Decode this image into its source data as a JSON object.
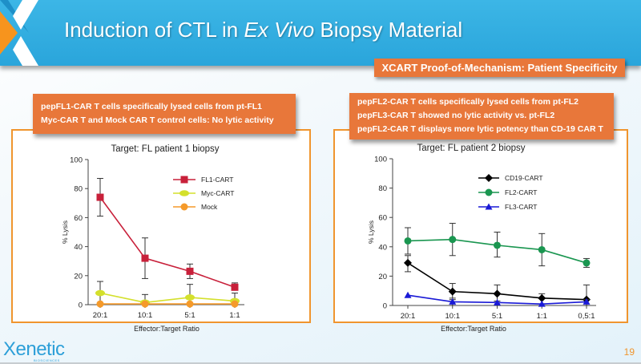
{
  "header": {
    "title_pre": "Induction of CTL in ",
    "title_italic": "Ex Vivo",
    "title_post": " Biopsy Material",
    "subtitle": "XCART Proof-of-Mechanism: Patient Specificity"
  },
  "callouts": {
    "left": [
      "pepFL1-CAR T cells specifically lysed cells from pt-FL1",
      "Myc-CAR T and Mock CAR T control cells: No lytic activity"
    ],
    "right": [
      "pepFL2-CAR T cells specifically lysed cells from pt-FL2",
      "pepFL3-CAR T showed no lytic activity vs. pt-FL2",
      "pepFL2-CAR T displays more lytic potency than CD-19 CAR T"
    ]
  },
  "footer": {
    "logo": "Xenetic",
    "logo_sub": "BIOSCIENCES",
    "page": "19"
  },
  "colors": {
    "accent_orange": "#e8773a",
    "header_blue": "#2aa5db",
    "panel_border": "#f0952e"
  },
  "chart_data": [
    {
      "type": "line",
      "title": "Target: FL patient 1 biopsy",
      "xlabel": "Effector:Target Ratio",
      "ylabel": "% Lysis",
      "ylim": [
        0,
        100
      ],
      "yticks": [
        0,
        20,
        40,
        60,
        80,
        100
      ],
      "categories": [
        "20:1",
        "10:1",
        "5:1",
        "1:1"
      ],
      "legend": "top-right",
      "series": [
        {
          "name": "FL1-CART",
          "color": "#c8203a",
          "marker": "square",
          "values": [
            74,
            32,
            23,
            12
          ],
          "err_low": [
            61,
            18,
            18,
            10
          ],
          "err_high": [
            87,
            46,
            28,
            15
          ]
        },
        {
          "name": "Myc-CART",
          "color": "#d4e02c",
          "marker": "ellipse",
          "values": [
            8,
            1.5,
            5,
            2.5
          ],
          "err_low": [
            0,
            0,
            0,
            0
          ],
          "err_high": [
            16,
            7,
            14,
            8
          ]
        },
        {
          "name": "Mock",
          "color": "#f59a2a",
          "marker": "circle",
          "values": [
            0.5,
            0.5,
            0.5,
            0.5
          ],
          "err_low": [
            0.5,
            0.5,
            0.5,
            0.5
          ],
          "err_high": [
            0.5,
            0.5,
            0.5,
            0.5
          ]
        }
      ]
    },
    {
      "type": "line",
      "title": "Target: FL patient 2 biopsy",
      "xlabel": "Effector:Target Ratio",
      "ylabel": "% Lysis",
      "ylim": [
        0,
        100
      ],
      "yticks": [
        0,
        20,
        40,
        60,
        80,
        100
      ],
      "categories": [
        "20:1",
        "10:1",
        "5:1",
        "1:1",
        "0,5:1"
      ],
      "legend": "top-right",
      "series": [
        {
          "name": "CD19-CART",
          "color": "#000000",
          "marker": "diamond",
          "values": [
            29,
            9.5,
            8,
            5,
            4
          ],
          "err_low": [
            23,
            5,
            0,
            0,
            0
          ],
          "err_high": [
            34,
            15,
            14,
            8,
            14
          ]
        },
        {
          "name": "FL2-CART",
          "color": "#1a9650",
          "marker": "circle",
          "values": [
            44,
            45,
            41,
            38,
            29
          ],
          "err_low": [
            35,
            34,
            33,
            27,
            26
          ],
          "err_high": [
            53,
            56,
            50,
            49,
            32
          ]
        },
        {
          "name": "FL3-CART",
          "color": "#1a1ad6",
          "marker": "triangle",
          "values": [
            7,
            2.5,
            2,
            1,
            2.5
          ],
          "err_low": [
            7,
            0,
            0,
            0,
            0
          ],
          "err_high": [
            7,
            4,
            3,
            1,
            4
          ]
        }
      ]
    }
  ]
}
